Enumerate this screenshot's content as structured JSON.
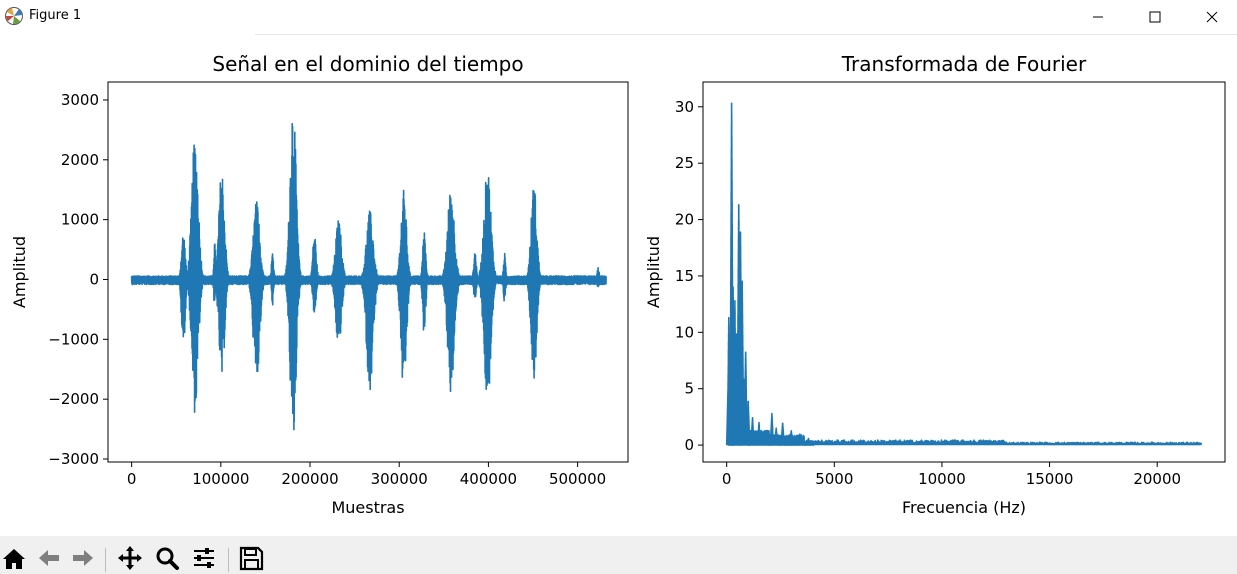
{
  "window": {
    "title": "Figure 1"
  },
  "toolbar": {
    "buttons": [
      "home-icon",
      "back-arrow-icon",
      "forward-arrow-icon",
      "pan-move-icon",
      "zoom-magnifier-icon",
      "configure-subplots-icon",
      "save-floppy-icon"
    ]
  },
  "colors": {
    "line": "#1f77b4",
    "toolbar_bg": "#f0f0f0"
  },
  "chart_data": [
    {
      "type": "line",
      "title": "Señal en el dominio del tiempo",
      "xlabel": "Muestras",
      "ylabel": "Amplitud",
      "xlim": [
        -26500,
        556500
      ],
      "ylim": [
        -3050,
        3300
      ],
      "xticks": [
        0,
        100000,
        200000,
        300000,
        400000,
        500000
      ],
      "xtick_labels": [
        "0",
        "100000",
        "200000",
        "300000",
        "400000",
        "500000"
      ],
      "yticks": [
        3000,
        2000,
        1000,
        0,
        -1000,
        -2000,
        -3000
      ],
      "ytick_labels": [
        "3000",
        "2000",
        "1000",
        "0",
        "−1000",
        "−2000",
        "−3000"
      ],
      "noise_amplitude": 60,
      "x_end": 532000,
      "bursts": [
        {
          "x": 58000,
          "width": 9000,
          "max": 800,
          "min": -1150
        },
        {
          "x": 71000,
          "width": 15000,
          "max": 2420,
          "min": -2250
        },
        {
          "x": 93000,
          "width": 4000,
          "max": 650,
          "min": -500
        },
        {
          "x": 101000,
          "width": 13000,
          "max": 1880,
          "min": -1700
        },
        {
          "x": 140000,
          "width": 15000,
          "max": 1320,
          "min": -1780
        },
        {
          "x": 158000,
          "width": 5000,
          "max": 480,
          "min": -450
        },
        {
          "x": 181000,
          "width": 14000,
          "max": 3050,
          "min": -2750
        },
        {
          "x": 205000,
          "width": 8000,
          "max": 800,
          "min": -600
        },
        {
          "x": 232000,
          "width": 14000,
          "max": 1000,
          "min": -1150
        },
        {
          "x": 267000,
          "width": 16000,
          "max": 1150,
          "min": -1850
        },
        {
          "x": 305000,
          "width": 13000,
          "max": 1500,
          "min": -1920
        },
        {
          "x": 328000,
          "width": 7000,
          "max": 850,
          "min": -950
        },
        {
          "x": 358000,
          "width": 16000,
          "max": 1550,
          "min": -1900
        },
        {
          "x": 385000,
          "width": 6000,
          "max": 500,
          "min": -400
        },
        {
          "x": 399000,
          "width": 16000,
          "max": 1880,
          "min": -2100
        },
        {
          "x": 418000,
          "width": 5000,
          "max": 450,
          "min": -400
        },
        {
          "x": 451000,
          "width": 13000,
          "max": 1620,
          "min": -1700
        },
        {
          "x": 523000,
          "width": 5000,
          "max": 200,
          "min": -150
        }
      ]
    },
    {
      "type": "line",
      "title": "Transformada de Fourier",
      "xlabel": "Frecuencia (Hz)",
      "ylabel": "Amplitud",
      "xlim": [
        -1100,
        23150
      ],
      "ylim": [
        -1.5,
        32.2
      ],
      "xticks": [
        0,
        5000,
        10000,
        15000,
        20000
      ],
      "xtick_labels": [
        "0",
        "5000",
        "10000",
        "15000",
        "20000"
      ],
      "yticks": [
        30,
        25,
        20,
        15,
        10,
        5,
        0
      ],
      "ytick_labels": [
        "30",
        "25",
        "20",
        "15",
        "10",
        "5",
        "0"
      ],
      "x_end": 22050,
      "peaks": [
        {
          "x": 100,
          "y": 11.3
        },
        {
          "x": 180,
          "y": 8.5
        },
        {
          "x": 230,
          "y": 30.8
        },
        {
          "x": 300,
          "y": 14.0
        },
        {
          "x": 380,
          "y": 12.8
        },
        {
          "x": 450,
          "y": 10.0
        },
        {
          "x": 560,
          "y": 22.0
        },
        {
          "x": 640,
          "y": 19.5
        },
        {
          "x": 720,
          "y": 15.0
        },
        {
          "x": 800,
          "y": 6.0
        },
        {
          "x": 880,
          "y": 8.5
        },
        {
          "x": 1000,
          "y": 4.0
        },
        {
          "x": 1200,
          "y": 2.5
        },
        {
          "x": 1500,
          "y": 2.0
        },
        {
          "x": 1800,
          "y": 1.3
        },
        {
          "x": 2100,
          "y": 2.8
        },
        {
          "x": 2300,
          "y": 1.5
        },
        {
          "x": 2600,
          "y": 2.0
        },
        {
          "x": 3000,
          "y": 1.3
        },
        {
          "x": 3400,
          "y": 1.0
        },
        {
          "x": 3800,
          "y": 0.6
        }
      ]
    }
  ]
}
